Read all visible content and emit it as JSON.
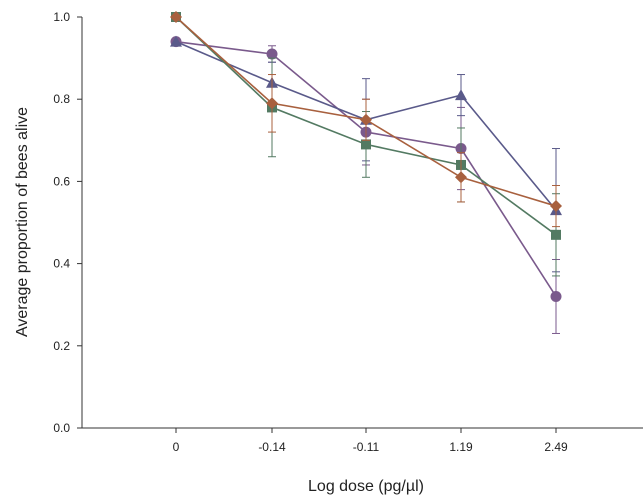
{
  "chart_data": {
    "type": "line",
    "xlabel": "Log dose (pg/µl)",
    "ylabel": "Average proportion of bees alive",
    "categories": [
      "0",
      "-0.14",
      "-0.11",
      "1.19",
      "2.49"
    ],
    "ylim": [
      0.0,
      1.0
    ],
    "yticks": [
      "0.0",
      "0.2",
      "0.4",
      "0.6",
      "0.8",
      "1.0"
    ],
    "grid": false,
    "legend": "none",
    "series": [
      {
        "marker": "circle",
        "color": "#7a5a8c",
        "values": [
          0.94,
          0.91,
          0.72,
          0.68,
          0.32
        ],
        "errors": [
          0.0,
          0.02,
          0.08,
          0.1,
          0.09
        ]
      },
      {
        "marker": "triangle",
        "color": "#5a5a8a",
        "values": [
          0.94,
          0.84,
          0.75,
          0.81,
          0.53
        ],
        "errors": [
          0.0,
          0.05,
          0.1,
          0.05,
          0.15
        ]
      },
      {
        "marker": "square",
        "color": "#537a62",
        "values": [
          1.0,
          0.78,
          0.69,
          0.64,
          0.47
        ],
        "errors": [
          0.0,
          0.12,
          0.08,
          0.09,
          0.1
        ]
      },
      {
        "marker": "diamond",
        "color": "#a8603e",
        "values": [
          1.0,
          0.79,
          0.75,
          0.61,
          0.54
        ],
        "errors": [
          0.0,
          0.07,
          0.05,
          0.06,
          0.05
        ]
      }
    ]
  }
}
